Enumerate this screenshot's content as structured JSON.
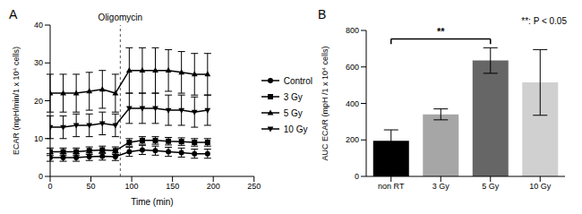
{
  "chart_data": [
    {
      "panel": "A",
      "type": "line",
      "x_label": "Time (min)",
      "y_label": "ECAR (mpH/min/1 x 10⁴ cells)",
      "x": [
        0,
        16,
        32,
        48,
        64,
        80,
        97,
        113,
        129,
        145,
        161,
        177,
        193
      ],
      "series": [
        {
          "name": "Control",
          "color": "#000000",
          "marker": "circle",
          "values": [
            5,
            5,
            5,
            5.2,
            5.3,
            5.2,
            6.5,
            7,
            6.8,
            6.5,
            6.3,
            6,
            6
          ],
          "errors": [
            1,
            1,
            1,
            1,
            1,
            1,
            1.2,
            1.2,
            1.2,
            1.2,
            1.2,
            1.2,
            1.2
          ]
        },
        {
          "name": "3 Gy",
          "color": "#000000",
          "marker": "square",
          "values": [
            6.5,
            6.5,
            6.5,
            6.8,
            7,
            6.8,
            9,
            9.5,
            9.5,
            9.3,
            9.2,
            9,
            9
          ],
          "errors": [
            1,
            1,
            1,
            1,
            1,
            1,
            1,
            1,
            1,
            1,
            1,
            1,
            1
          ]
        },
        {
          "name": "5 Gy",
          "color": "#000000",
          "marker": "triangle",
          "values": [
            22,
            22,
            22,
            22.5,
            23,
            22,
            28,
            28,
            28,
            28,
            27.5,
            27,
            27
          ],
          "errors": [
            5,
            5,
            5,
            5,
            5,
            5,
            6,
            6,
            6,
            5.5,
            5.5,
            5.5,
            5.5
          ]
        },
        {
          "name": "10 Gy",
          "color": "#000000",
          "marker": "triangle_down",
          "values": [
            13,
            13,
            13.5,
            13.5,
            14,
            13.5,
            18,
            18,
            18,
            17.5,
            17.5,
            17,
            17.5
          ],
          "errors": [
            3,
            3,
            3,
            3,
            3,
            3,
            4,
            4,
            4,
            4,
            4,
            4,
            4
          ]
        }
      ],
      "xlim": [
        0,
        250
      ],
      "xticks": [
        0,
        50,
        100,
        150,
        200,
        250
      ],
      "ylim": [
        0,
        40
      ],
      "yticks": [
        0,
        10,
        20,
        30,
        40
      ],
      "legend": "right",
      "events": [
        {
          "label": "Oligomycin",
          "x": 86
        }
      ]
    },
    {
      "panel": "B",
      "type": "bar",
      "y_label": "AUC ECAR (mpH /1 x 10⁴ cells)",
      "categories": [
        "non RT",
        "3 Gy",
        "5 Gy",
        "10 Gy"
      ],
      "values": [
        195,
        340,
        635,
        515
      ],
      "errors": [
        60,
        30,
        70,
        180
      ],
      "colors": [
        "#000000",
        "#a6a6a6",
        "#666666",
        "#d0d0d0"
      ],
      "ylim": [
        0,
        800
      ],
      "yticks": [
        0,
        200,
        400,
        600,
        800
      ],
      "significance": [
        {
          "from": "non RT",
          "to": "5 Gy",
          "label": "**"
        }
      ],
      "note": "**: P < 0.05"
    }
  ]
}
